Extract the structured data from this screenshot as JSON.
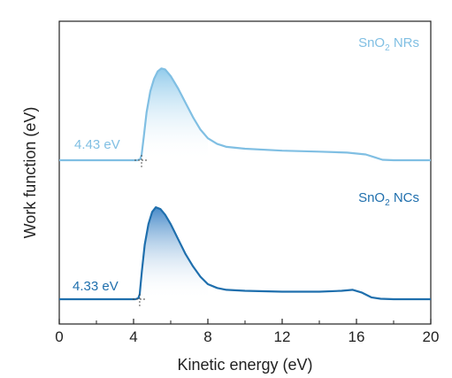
{
  "chart_data": {
    "type": "line",
    "xlabel": "Kinetic energy (eV)",
    "ylabel": "Work function (eV)",
    "xlim": [
      0,
      20
    ],
    "x_ticks": [
      "0",
      "4",
      "8",
      "12",
      "16",
      "20"
    ],
    "grid": false,
    "legend": "none",
    "series": [
      {
        "name": "SnO₂ NRs",
        "name_parts": {
          "base": "SnO",
          "sub": "2",
          "rest": " NRs"
        },
        "color": "#80bfe3",
        "fill_color": "#a9d3ef",
        "cutoff_label": "4.43 eV",
        "cutoff_x": 4.43,
        "points": [
          [
            0,
            0.0
          ],
          [
            4.2,
            0.0
          ],
          [
            4.35,
            0.01
          ],
          [
            4.43,
            0.05
          ],
          [
            4.55,
            0.25
          ],
          [
            4.7,
            0.5
          ],
          [
            4.9,
            0.72
          ],
          [
            5.1,
            0.85
          ],
          [
            5.3,
            0.93
          ],
          [
            5.5,
            0.96
          ],
          [
            5.7,
            0.95
          ],
          [
            6.0,
            0.88
          ],
          [
            6.4,
            0.75
          ],
          [
            6.8,
            0.6
          ],
          [
            7.2,
            0.45
          ],
          [
            7.6,
            0.32
          ],
          [
            8.0,
            0.23
          ],
          [
            8.5,
            0.17
          ],
          [
            9.0,
            0.14
          ],
          [
            10.0,
            0.12
          ],
          [
            12.0,
            0.1
          ],
          [
            14.0,
            0.09
          ],
          [
            15.5,
            0.08
          ],
          [
            16.5,
            0.06
          ],
          [
            17.0,
            0.03
          ],
          [
            17.4,
            0.005
          ],
          [
            18.0,
            0.0
          ],
          [
            20.0,
            0.0
          ]
        ]
      },
      {
        "name": "SnO₂ NCs",
        "name_parts": {
          "base": "SnO",
          "sub": "2",
          "rest": " NCs"
        },
        "color": "#1f6fad",
        "fill_color": "#4d90cc",
        "cutoff_label": "4.33 eV",
        "cutoff_x": 4.33,
        "points": [
          [
            0,
            0.0
          ],
          [
            4.1,
            0.0
          ],
          [
            4.25,
            0.01
          ],
          [
            4.33,
            0.05
          ],
          [
            4.45,
            0.3
          ],
          [
            4.6,
            0.58
          ],
          [
            4.8,
            0.8
          ],
          [
            5.0,
            0.93
          ],
          [
            5.2,
            0.98
          ],
          [
            5.45,
            0.96
          ],
          [
            5.7,
            0.9
          ],
          [
            6.0,
            0.8
          ],
          [
            6.4,
            0.64
          ],
          [
            6.8,
            0.48
          ],
          [
            7.2,
            0.35
          ],
          [
            7.6,
            0.24
          ],
          [
            8.0,
            0.16
          ],
          [
            8.5,
            0.12
          ],
          [
            9.0,
            0.1
          ],
          [
            10.0,
            0.09
          ],
          [
            12.0,
            0.08
          ],
          [
            14.0,
            0.08
          ],
          [
            15.2,
            0.09
          ],
          [
            15.8,
            0.1
          ],
          [
            16.3,
            0.07
          ],
          [
            16.8,
            0.02
          ],
          [
            17.3,
            0.005
          ],
          [
            18.0,
            0.0
          ],
          [
            20.0,
            0.0
          ]
        ]
      }
    ]
  }
}
